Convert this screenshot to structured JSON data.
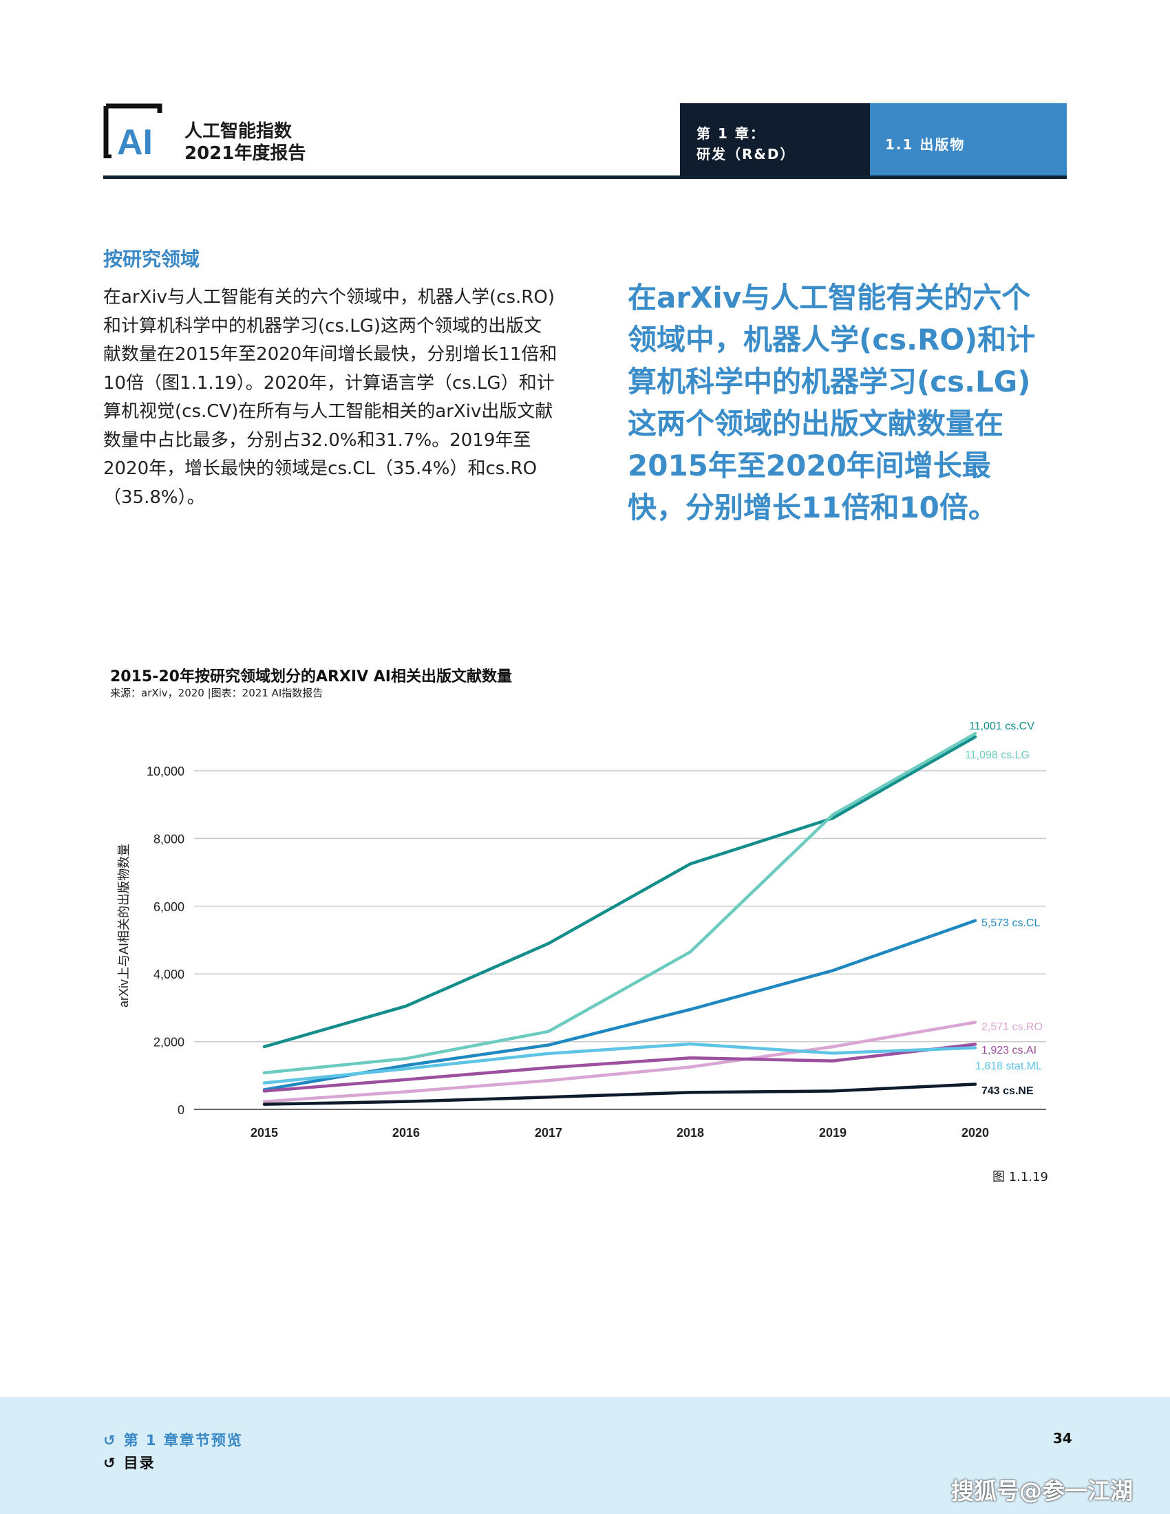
{
  "header": {
    "report_line1": "人工智能指数",
    "report_line2": "2021年度报告",
    "logo_text": "AI",
    "chapter_line1": "第 1 章：",
    "chapter_line2": "研发（R&D）",
    "section": "1.1 出版物"
  },
  "section_heading": "按研究领域",
  "body_text": "在arXiv与人工智能有关的六个领域中，机器人学(cs.RO)和计算机科学中的机器学习(cs.LG)这两个领域的出版文献数量在2015年至2020年间增长最快，分别增长11倍和10倍（图1.1.19）。2020年，计算语言学（cs.LG）和计算机视觉(cs.CV)在所有与人工智能相关的arXiv出版文献数量中占比最多，分别占32.0%和31.7%。2019年至2020年，增长最快的领域是cs.CL（35.4%）和cs.RO（35.8%）。",
  "pull_quote": "在arXiv与人工智能有关的六个领域中，机器人学(cs.RO)和计算机科学中的机器学习(cs.LG)这两个领域的出版文献数量在2015年至2020年间增长最快，分别增长11倍和10倍。",
  "chart_data": {
    "type": "line",
    "title": "2015-20年按研究领域划分的ARXIV AI相关出版文献数量",
    "source": "来源：arXiv，2020 |图表：2021 AI指数报告",
    "xlabel": "",
    "ylabel": "arXiv上与AI相关的出版物数量",
    "x": [
      2015,
      2016,
      2017,
      2018,
      2019,
      2020
    ],
    "x_tick_labels": [
      "2015",
      "2016",
      "2017",
      "2018",
      "2019",
      "2020"
    ],
    "y_ticks": [
      0,
      2000,
      4000,
      6000,
      8000,
      10000
    ],
    "y_tick_labels": [
      "0",
      "2,000",
      "4,000",
      "6,000",
      "8,000",
      "10,000"
    ],
    "ylim": [
      0,
      11500
    ],
    "grid": true,
    "series": [
      {
        "name": "cs.CV",
        "label": "11,001 cs.CV",
        "color": "#138e8a",
        "values": [
          1850,
          3050,
          4900,
          7250,
          8600,
          11001
        ]
      },
      {
        "name": "cs.LG",
        "label": "11,098 cs.LG",
        "color": "#6ccbbf",
        "values": [
          1080,
          1500,
          2300,
          4650,
          8700,
          11098
        ]
      },
      {
        "name": "cs.CL",
        "label": "5,573 cs.CL",
        "color": "#1f88c0",
        "values": [
          580,
          1300,
          1900,
          2950,
          4100,
          5573
        ]
      },
      {
        "name": "cs.RO",
        "label": "2,571 cs.RO",
        "color": "#d9a5d3",
        "values": [
          230,
          520,
          850,
          1250,
          1850,
          2571
        ]
      },
      {
        "name": "cs.AI",
        "label": "1,923 cs.AI",
        "color": "#9b4f9e",
        "values": [
          540,
          880,
          1230,
          1520,
          1430,
          1923
        ]
      },
      {
        "name": "stat.ML",
        "label": "1,818 stat.ML",
        "color": "#5ec4e6",
        "values": [
          780,
          1200,
          1650,
          1930,
          1660,
          1818
        ]
      },
      {
        "name": "cs.NE",
        "label": "743 cs.NE",
        "color": "#0d1b2a",
        "values": [
          150,
          230,
          360,
          500,
          540,
          743
        ]
      }
    ]
  },
  "figure_label": "图 1.1.19",
  "footer": {
    "nav_chapter": "第 1 章章节预览",
    "nav_toc": "目录",
    "page_number": "34",
    "watermark": "搜狐号@参一江湖"
  }
}
